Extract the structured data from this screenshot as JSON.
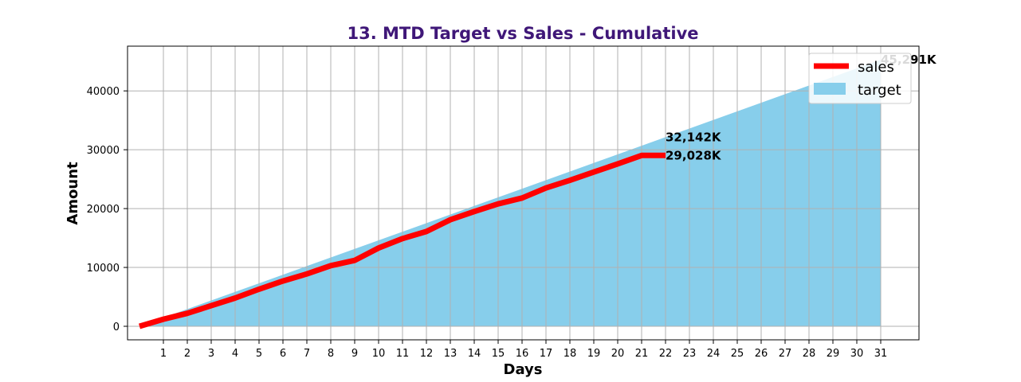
{
  "chart_data": {
    "type": "line",
    "title": "13. MTD Target vs Sales - Cumulative",
    "xlabel": "Days",
    "ylabel": "Amount",
    "x_ticks": [
      1,
      2,
      3,
      4,
      5,
      6,
      7,
      8,
      9,
      10,
      11,
      12,
      13,
      14,
      15,
      16,
      17,
      18,
      19,
      20,
      21,
      22,
      23,
      24,
      25,
      26,
      27,
      28,
      29,
      30,
      31
    ],
    "y_ticks": [
      0,
      10000,
      20000,
      30000,
      40000
    ],
    "xlim": [
      -0.5,
      32.6
    ],
    "ylim": [
      -2300,
      47600
    ],
    "grid": true,
    "legend_position": "top-right",
    "series": [
      {
        "name": "sales",
        "type": "line",
        "color": "#ff0000",
        "x": [
          0,
          1,
          2,
          3,
          4,
          5,
          6,
          7,
          8,
          9,
          10,
          11,
          12,
          13,
          14,
          15,
          16,
          17,
          18,
          19,
          20,
          21,
          22
        ],
        "values": [
          0,
          1200,
          2200,
          3500,
          4800,
          6300,
          7700,
          8900,
          10300,
          11200,
          13300,
          14900,
          16100,
          18100,
          19500,
          20800,
          21800,
          23500,
          24800,
          26200,
          27600,
          29028,
          29028
        ]
      },
      {
        "name": "target",
        "type": "area",
        "color": "#87ceeb",
        "x": [
          0,
          31
        ],
        "values": [
          0,
          45291
        ]
      }
    ],
    "annotations": [
      {
        "text": "32,142K",
        "x": 22,
        "y": 32142
      },
      {
        "text": "29,028K",
        "x": 22,
        "y": 29028
      },
      {
        "text": "45,291K",
        "x": 31,
        "y": 45291
      }
    ],
    "title_color": "#3f1778"
  }
}
